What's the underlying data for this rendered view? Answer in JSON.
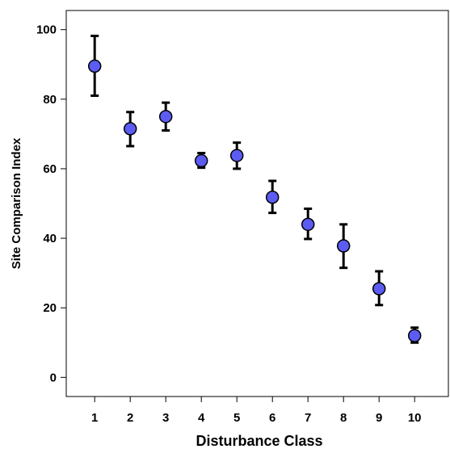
{
  "chart_data": {
    "type": "scatter",
    "title": "",
    "xlabel": "Disturbance Class",
    "ylabel": "Site Comparison Index",
    "x_ticks": [
      "1",
      "2",
      "3",
      "4",
      "5",
      "6",
      "7",
      "8",
      "9",
      "10"
    ],
    "y_ticks": [
      "0",
      "20",
      "40",
      "60",
      "80",
      "100"
    ],
    "xlim": [
      0.2,
      10.95
    ],
    "ylim": [
      -5.5,
      105.5
    ],
    "grid": false,
    "legend": "none",
    "colors": {
      "marker_fill": "#5c5cf2",
      "marker_edge": "#000000",
      "error_bar": "#000000"
    },
    "series": [
      {
        "x": [
          1,
          2,
          3,
          4,
          5,
          6,
          7,
          8,
          9,
          10
        ],
        "y": [
          89.5,
          71.5,
          75.0,
          62.3,
          63.8,
          51.8,
          44.0,
          37.8,
          25.5,
          12.0
        ],
        "error_low": [
          81.0,
          66.5,
          71.0,
          60.3,
          60.0,
          47.3,
          39.8,
          31.5,
          20.8,
          10.0
        ],
        "error_high": [
          98.2,
          76.3,
          79.0,
          64.5,
          67.5,
          56.5,
          48.5,
          44.0,
          30.5,
          14.3
        ]
      }
    ]
  }
}
